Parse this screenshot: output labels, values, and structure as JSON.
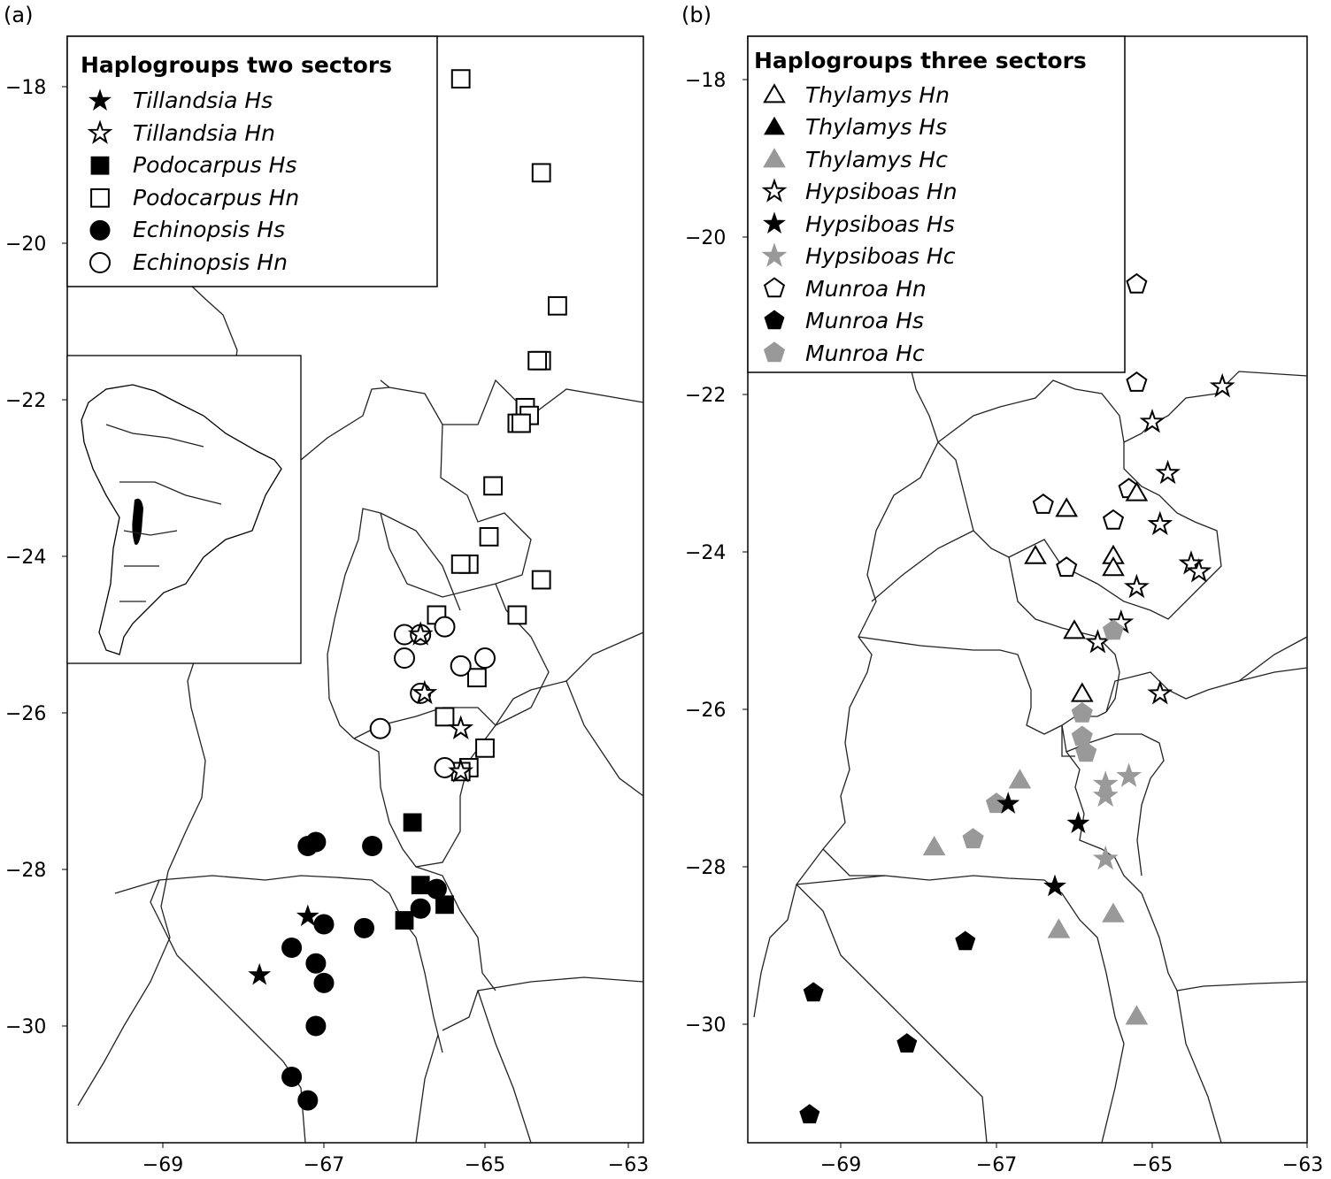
{
  "panels": [
    {
      "label": "(a)",
      "x_ticks": [
        "−69",
        "−67",
        "−65",
        "−63"
      ],
      "y_ticks": [
        "−18",
        "−20",
        "−22",
        "−24",
        "−26",
        "−28",
        "−30"
      ],
      "legend": {
        "title": "Haplogroups two sectors",
        "entries": [
          {
            "label": "Tillandsia Hs",
            "shape": "star",
            "fill": "#000000"
          },
          {
            "label": "Tillandsia Hn",
            "shape": "star",
            "fill": "#ffffff"
          },
          {
            "label": "Podocarpus Hs",
            "shape": "square",
            "fill": "#000000"
          },
          {
            "label": "Podocarpus Hn",
            "shape": "square",
            "fill": "#ffffff"
          },
          {
            "label": "Echinopsis Hs",
            "shape": "circle",
            "fill": "#000000"
          },
          {
            "label": "Echinopsis Hn",
            "shape": "circle",
            "fill": "#ffffff"
          }
        ]
      }
    },
    {
      "label": "(b)",
      "x_ticks": [
        "−69",
        "−67",
        "−65",
        "−63"
      ],
      "y_ticks": [
        "−18",
        "−20",
        "−22",
        "−24",
        "−26",
        "−28",
        "−30"
      ],
      "legend": {
        "title": "Haplogroups three sectors",
        "entries": [
          {
            "label": "Thylamys Hn",
            "shape": "triangle",
            "fill": "#ffffff"
          },
          {
            "label": "Thylamys Hs",
            "shape": "triangle",
            "fill": "#000000"
          },
          {
            "label": "Thylamys Hc",
            "shape": "triangle",
            "fill": "#999999"
          },
          {
            "label": "Hypsiboas Hn",
            "shape": "star",
            "fill": "#ffffff"
          },
          {
            "label": "Hypsiboas Hs",
            "shape": "star",
            "fill": "#000000"
          },
          {
            "label": "Hypsiboas Hc",
            "shape": "star",
            "fill": "#999999"
          },
          {
            "label": "Munroa Hn",
            "shape": "pentagon",
            "fill": "#ffffff"
          },
          {
            "label": "Munroa Hs",
            "shape": "pentagon",
            "fill": "#000000"
          },
          {
            "label": "Munroa Hc",
            "shape": "pentagon",
            "fill": "#999999"
          }
        ]
      }
    }
  ],
  "colors": {
    "black": "#000000",
    "white": "#ffffff",
    "gray": "#999999",
    "border": "#222222"
  },
  "markers": {
    "a": [
      {
        "name": "podocarpus-hn-marker",
        "shape": "square",
        "fill": "#ffffff",
        "pts": [
          [
            -65.3,
            -17.9
          ],
          [
            -64.3,
            -19.1
          ],
          [
            -64.1,
            -20.8
          ],
          [
            -64.3,
            -21.5
          ],
          [
            -64.35,
            -21.5
          ],
          [
            -64.5,
            -22.1
          ],
          [
            -64.45,
            -22.2
          ],
          [
            -64.6,
            -22.3
          ],
          [
            -64.55,
            -22.3
          ],
          [
            -64.9,
            -23.1
          ],
          [
            -64.95,
            -23.75
          ],
          [
            -65.2,
            -24.1
          ],
          [
            -65.3,
            -24.1
          ],
          [
            -64.3,
            -24.3
          ],
          [
            -64.6,
            -24.75
          ],
          [
            -65.6,
            -24.75
          ],
          [
            -65.1,
            -25.55
          ],
          [
            -65.5,
            -26.05
          ],
          [
            -65.2,
            -26.7
          ],
          [
            -65.3,
            -26.75
          ],
          [
            -65.0,
            -26.45
          ]
        ]
      },
      {
        "name": "echinopsis-hn-marker",
        "shape": "circle",
        "fill": "#ffffff",
        "pts": [
          [
            -66.0,
            -25.0
          ],
          [
            -65.8,
            -25.0
          ],
          [
            -65.5,
            -24.9
          ],
          [
            -66.0,
            -25.3
          ],
          [
            -65.3,
            -25.4
          ],
          [
            -65.0,
            -25.3
          ],
          [
            -65.8,
            -25.75
          ],
          [
            -66.3,
            -26.2
          ],
          [
            -65.5,
            -26.7
          ]
        ]
      },
      {
        "name": "tillandsia-hn-marker",
        "shape": "star",
        "fill": "#ffffff",
        "pts": [
          [
            -65.8,
            -25.0
          ],
          [
            -65.75,
            -25.75
          ],
          [
            -65.3,
            -26.2
          ],
          [
            -65.3,
            -26.75
          ]
        ]
      },
      {
        "name": "echinopsis-hs-marker",
        "shape": "circle",
        "fill": "#000000",
        "pts": [
          [
            -67.2,
            -27.7
          ],
          [
            -67.1,
            -27.65
          ],
          [
            -66.4,
            -27.7
          ],
          [
            -65.6,
            -28.25
          ],
          [
            -65.8,
            -28.5
          ],
          [
            -67.0,
            -28.7
          ],
          [
            -66.5,
            -28.75
          ],
          [
            -67.4,
            -29.0
          ],
          [
            -67.1,
            -29.2
          ],
          [
            -67.0,
            -29.45
          ],
          [
            -67.1,
            -30.0
          ],
          [
            -67.4,
            -30.65
          ],
          [
            -67.2,
            -30.95
          ]
        ]
      },
      {
        "name": "podocarpus-hs-marker",
        "shape": "square",
        "fill": "#000000",
        "pts": [
          [
            -65.9,
            -27.4
          ],
          [
            -65.8,
            -28.2
          ],
          [
            -65.5,
            -28.45
          ],
          [
            -66.0,
            -28.65
          ]
        ]
      },
      {
        "name": "tillandsia-hs-marker",
        "shape": "star",
        "fill": "#000000",
        "pts": [
          [
            -67.2,
            -28.6
          ],
          [
            -67.8,
            -29.35
          ]
        ]
      }
    ],
    "b": [
      {
        "name": "munroa-hn-marker",
        "shape": "pentagon",
        "fill": "#ffffff",
        "pts": [
          [
            -65.2,
            -20.6
          ],
          [
            -65.2,
            -21.85
          ],
          [
            -66.4,
            -23.4
          ],
          [
            -66.1,
            -24.2
          ],
          [
            -65.5,
            -23.6
          ],
          [
            -65.3,
            -23.2
          ]
        ]
      },
      {
        "name": "hypsiboas-hn-marker",
        "shape": "star",
        "fill": "#ffffff",
        "pts": [
          [
            -64.1,
            -21.9
          ],
          [
            -65.0,
            -22.35
          ],
          [
            -64.8,
            -23.0
          ],
          [
            -64.9,
            -23.65
          ],
          [
            -64.5,
            -24.15
          ],
          [
            -64.4,
            -24.25
          ],
          [
            -65.2,
            -24.45
          ],
          [
            -65.4,
            -24.9
          ],
          [
            -65.7,
            -25.15
          ],
          [
            -64.9,
            -25.8
          ]
        ]
      },
      {
        "name": "thylamys-hn-marker",
        "shape": "triangle",
        "fill": "#ffffff",
        "pts": [
          [
            -65.2,
            -23.25
          ],
          [
            -66.1,
            -23.45
          ],
          [
            -66.5,
            -24.05
          ],
          [
            -65.5,
            -24.05
          ],
          [
            -65.5,
            -24.2
          ],
          [
            -66.0,
            -25.0
          ],
          [
            -65.9,
            -25.8
          ]
        ]
      },
      {
        "name": "munroa-hc-marker",
        "shape": "pentagon",
        "fill": "#999999",
        "pts": [
          [
            -65.5,
            -25.0
          ],
          [
            -65.9,
            -26.05
          ],
          [
            -65.9,
            -26.35
          ],
          [
            -65.85,
            -26.55
          ],
          [
            -67.0,
            -27.2
          ],
          [
            -67.3,
            -27.65
          ]
        ]
      },
      {
        "name": "hypsiboas-hc-marker",
        "shape": "star",
        "fill": "#999999",
        "pts": [
          [
            -65.6,
            -26.95
          ],
          [
            -65.6,
            -27.1
          ],
          [
            -65.3,
            -26.85
          ],
          [
            -65.6,
            -27.9
          ]
        ]
      },
      {
        "name": "thylamys-hc-marker",
        "shape": "triangle",
        "fill": "#999999",
        "pts": [
          [
            -66.7,
            -26.9
          ],
          [
            -67.8,
            -27.75
          ],
          [
            -66.2,
            -28.8
          ],
          [
            -65.5,
            -28.6
          ],
          [
            -65.2,
            -29.9
          ]
        ]
      },
      {
        "name": "hypsiboas-hs-marker",
        "shape": "star",
        "fill": "#000000",
        "pts": [
          [
            -66.85,
            -27.2
          ],
          [
            -65.95,
            -27.45
          ],
          [
            -66.25,
            -28.25
          ]
        ]
      },
      {
        "name": "munroa-hs-marker",
        "shape": "pentagon",
        "fill": "#000000",
        "pts": [
          [
            -67.4,
            -28.95
          ],
          [
            -69.35,
            -29.6
          ],
          [
            -68.15,
            -30.25
          ],
          [
            -69.4,
            -31.15
          ]
        ]
      }
    ]
  }
}
